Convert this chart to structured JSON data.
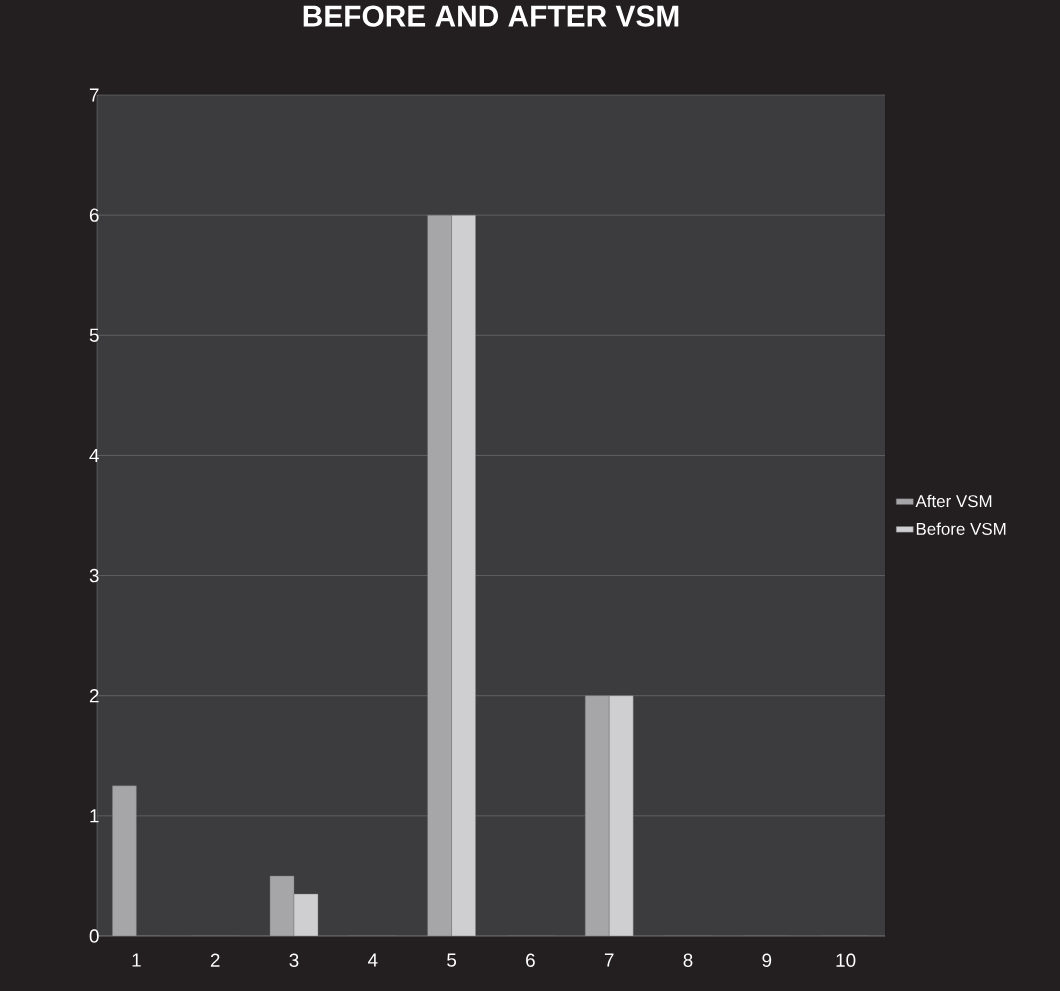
{
  "chart_data": {
    "type": "bar",
    "title": "BEFORE AND AFTER VSM",
    "categories": [
      "1",
      "2",
      "3",
      "4",
      "5",
      "6",
      "7",
      "8",
      "9",
      "10"
    ],
    "series": [
      {
        "name": "After VSM",
        "color": "#a6a6a8",
        "values": [
          1.25,
          0,
          0.5,
          0,
          6,
          0,
          2,
          0,
          0,
          0
        ]
      },
      {
        "name": "Before VSM",
        "color": "#cfcfd1",
        "values": [
          0,
          0,
          0.35,
          0,
          6,
          0,
          2,
          0,
          0,
          0
        ]
      }
    ],
    "ylim": [
      0,
      7
    ],
    "yticks": [
      0,
      1,
      2,
      3,
      4,
      5,
      6,
      7
    ],
    "grid": "y",
    "legend": "right"
  }
}
